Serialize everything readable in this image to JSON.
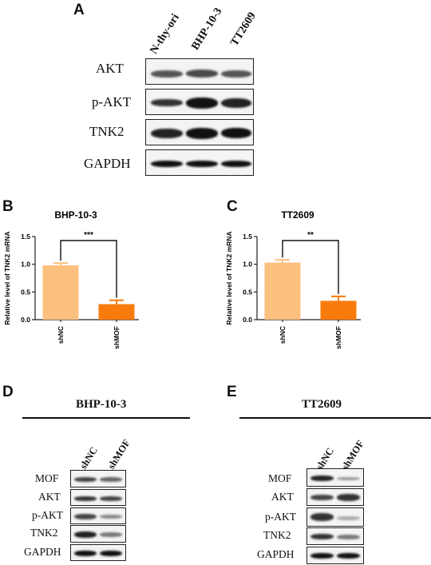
{
  "panels": {
    "a": "A",
    "b": "B",
    "c": "C",
    "d": "D",
    "e": "E"
  },
  "panel_a": {
    "lanes": [
      "N-thy-ori",
      "BHP-10-3",
      "TT2609"
    ],
    "rows": [
      "AKT",
      "p-AKT",
      "TNK2",
      "GAPDH"
    ]
  },
  "panel_d": {
    "title": "BHP-10-3",
    "lanes": [
      "shNC",
      "shMOF"
    ],
    "rows": [
      "MOF",
      "AKT",
      "p-AKT",
      "TNK2",
      "GAPDH"
    ]
  },
  "panel_e": {
    "title": "TT2609",
    "lanes": [
      "shNC",
      "shMOF"
    ],
    "rows": [
      "MOF",
      "AKT",
      "p-AKT",
      "TNK2",
      "GAPDH"
    ]
  },
  "chart_data": [
    {
      "type": "bar",
      "title": "BHP-10-3",
      "ylabel": "Relative level of TNK2 mRNA",
      "xlabel": "",
      "categories": [
        "shNC",
        "shMOF"
      ],
      "values": [
        0.98,
        0.28
      ],
      "errors": [
        0.04,
        0.07
      ],
      "ylim": [
        0,
        1.5
      ],
      "yticks": [
        "0.0",
        "0.5",
        "1.0",
        "1.5"
      ],
      "significance": "***",
      "colors": [
        "#fcc07e",
        "#f97b0e"
      ]
    },
    {
      "type": "bar",
      "title": "TT2609",
      "ylabel": "Relative level of TNK2 mRNA",
      "xlabel": "",
      "categories": [
        "shNC",
        "shMOF"
      ],
      "values": [
        1.03,
        0.34
      ],
      "errors": [
        0.05,
        0.08
      ],
      "ylim": [
        0,
        1.5
      ],
      "yticks": [
        "0.0",
        "0.5",
        "1.0",
        "1.5"
      ],
      "significance": "**",
      "colors": [
        "#fcc07e",
        "#f97b0e"
      ]
    }
  ]
}
